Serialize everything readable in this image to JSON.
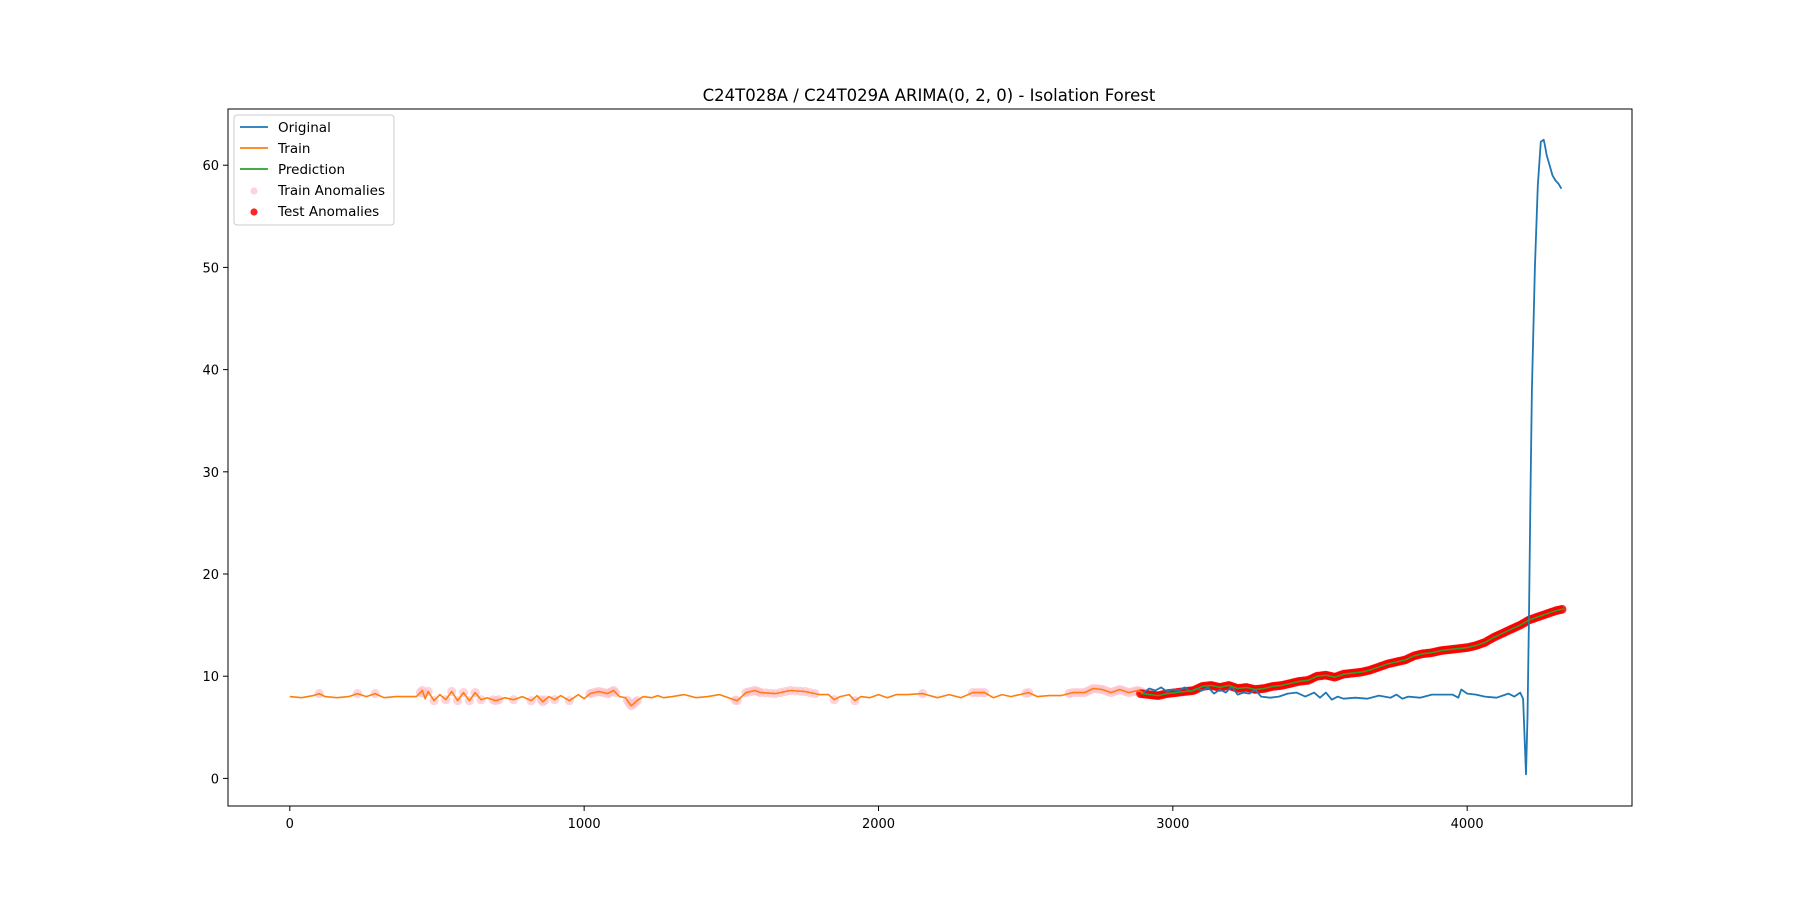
{
  "chart_data": {
    "type": "line",
    "title": "C24T028A / C24T029A ARIMA(0, 2, 0) - Isolation Forest",
    "xlabel": "",
    "ylabel": "",
    "xlim": [
      -210,
      4560
    ],
    "ylim": [
      -2.7,
      65.5
    ],
    "xticks": [
      0,
      1000,
      2000,
      3000,
      4000
    ],
    "yticks": [
      0,
      10,
      20,
      30,
      40,
      50,
      60
    ],
    "grid": false,
    "legend_position": "upper left",
    "colors": {
      "original": "#1f77b4",
      "train": "#ff7f0e",
      "prediction": "#2ca02c",
      "train_anomalies": "#ffc0cb",
      "test_anomalies": "#ff0000"
    },
    "legend": [
      {
        "key": "original",
        "label": "Original",
        "kind": "line"
      },
      {
        "key": "train",
        "label": "Train",
        "kind": "line"
      },
      {
        "key": "prediction",
        "label": "Prediction",
        "kind": "line"
      },
      {
        "key": "train_anomalies",
        "label": "Train Anomalies",
        "kind": "marker"
      },
      {
        "key": "test_anomalies",
        "label": "Test Anomalies",
        "kind": "marker"
      }
    ],
    "series": [
      {
        "name": "Original",
        "key": "original",
        "x": [
          2900,
          2920,
          2940,
          2960,
          2980,
          3000,
          3020,
          3040,
          3060,
          3080,
          3100,
          3120,
          3140,
          3160,
          3180,
          3200,
          3220,
          3240,
          3260,
          3280,
          3300,
          3330,
          3360,
          3390,
          3420,
          3450,
          3480,
          3500,
          3520,
          3540,
          3560,
          3580,
          3620,
          3660,
          3700,
          3740,
          3760,
          3780,
          3800,
          3840,
          3880,
          3920,
          3950,
          3970,
          3980,
          4000,
          4030,
          4060,
          4100,
          4140,
          4160,
          4180,
          4190,
          4200,
          4205,
          4210,
          4215,
          4220,
          4230,
          4240,
          4250,
          4260,
          4265,
          4270,
          4280,
          4290,
          4300,
          4310,
          4320
        ],
        "y": [
          8.4,
          8.8,
          8.6,
          8.9,
          8.5,
          8.7,
          8.6,
          8.9,
          8.5,
          8.8,
          8.6,
          8.9,
          8.3,
          8.7,
          8.4,
          9.0,
          8.2,
          8.4,
          8.3,
          8.7,
          8.0,
          7.9,
          8.0,
          8.3,
          8.4,
          8.0,
          8.4,
          7.9,
          8.4,
          7.7,
          8.0,
          7.8,
          7.9,
          7.8,
          8.1,
          7.9,
          8.2,
          7.8,
          8.0,
          7.9,
          8.2,
          8.2,
          8.2,
          7.9,
          8.7,
          8.3,
          8.2,
          8.0,
          7.9,
          8.3,
          8.0,
          8.4,
          7.8,
          0.4,
          6.0,
          16.0,
          28.0,
          38.0,
          50.0,
          58.0,
          62.3,
          62.5,
          61.8,
          61.0,
          60.0,
          59.0,
          58.5,
          58.2,
          57.7
        ]
      },
      {
        "name": "Train",
        "key": "train",
        "x": [
          0,
          40,
          80,
          100,
          120,
          160,
          200,
          230,
          260,
          290,
          320,
          360,
          400,
          430,
          450,
          460,
          470,
          490,
          510,
          530,
          550,
          570,
          590,
          610,
          630,
          650,
          670,
          700,
          730,
          760,
          790,
          820,
          840,
          860,
          880,
          900,
          920,
          950,
          980,
          1000,
          1020,
          1050,
          1080,
          1100,
          1120,
          1140,
          1160,
          1180,
          1200,
          1230,
          1250,
          1270,
          1300,
          1340,
          1380,
          1420,
          1460,
          1500,
          1520,
          1550,
          1580,
          1600,
          1650,
          1700,
          1750,
          1800,
          1830,
          1850,
          1870,
          1900,
          1920,
          1940,
          1970,
          2000,
          2030,
          2060,
          2100,
          2150,
          2200,
          2240,
          2280,
          2320,
          2360,
          2390,
          2420,
          2450,
          2480,
          2510,
          2540,
          2580,
          2620,
          2660,
          2700,
          2730,
          2760,
          2790,
          2820,
          2850,
          2880,
          2900
        ],
        "y": [
          8.0,
          7.9,
          8.1,
          8.3,
          8.0,
          7.9,
          8.0,
          8.3,
          8.0,
          8.3,
          7.9,
          8.0,
          8.0,
          8.0,
          8.6,
          7.8,
          8.5,
          7.6,
          8.2,
          7.7,
          8.5,
          7.6,
          8.4,
          7.6,
          8.4,
          7.7,
          7.9,
          7.6,
          7.9,
          7.7,
          8.0,
          7.6,
          8.1,
          7.5,
          8.0,
          7.7,
          8.1,
          7.6,
          8.2,
          7.8,
          8.3,
          8.5,
          8.3,
          8.6,
          8.0,
          7.9,
          7.1,
          7.6,
          8.0,
          7.9,
          8.1,
          7.9,
          8.0,
          8.2,
          7.9,
          8.0,
          8.2,
          7.8,
          7.6,
          8.4,
          8.6,
          8.4,
          8.3,
          8.6,
          8.5,
          8.2,
          8.2,
          7.7,
          8.0,
          8.2,
          7.6,
          8.0,
          7.9,
          8.2,
          7.9,
          8.2,
          8.2,
          8.3,
          7.9,
          8.2,
          7.9,
          8.4,
          8.4,
          7.9,
          8.2,
          8.0,
          8.2,
          8.4,
          8.0,
          8.1,
          8.1,
          8.4,
          8.4,
          8.8,
          8.7,
          8.4,
          8.7,
          8.4,
          8.6,
          8.4
        ]
      },
      {
        "name": "Prediction",
        "key": "prediction",
        "x": [
          2890,
          2920,
          2950,
          2980,
          3010,
          3040,
          3070,
          3100,
          3130,
          3160,
          3190,
          3220,
          3250,
          3280,
          3310,
          3340,
          3370,
          3400,
          3430,
          3460,
          3490,
          3520,
          3550,
          3580,
          3610,
          3640,
          3670,
          3700,
          3730,
          3760,
          3790,
          3820,
          3850,
          3880,
          3910,
          3940,
          3970,
          4000,
          4030,
          4060,
          4090,
          4120,
          4150,
          4180,
          4210,
          4240,
          4270,
          4300,
          4330
        ],
        "y": [
          8.3,
          8.2,
          8.1,
          8.3,
          8.4,
          8.5,
          8.6,
          9.0,
          9.1,
          8.9,
          9.1,
          8.8,
          8.9,
          8.7,
          8.8,
          9.0,
          9.1,
          9.3,
          9.5,
          9.6,
          10.0,
          10.1,
          9.9,
          10.2,
          10.3,
          10.4,
          10.6,
          10.9,
          11.2,
          11.4,
          11.6,
          12.0,
          12.2,
          12.3,
          12.5,
          12.6,
          12.7,
          12.8,
          13.0,
          13.3,
          13.8,
          14.2,
          14.6,
          15.0,
          15.5,
          15.8,
          16.1,
          16.4,
          16.6
        ]
      }
    ]
  }
}
